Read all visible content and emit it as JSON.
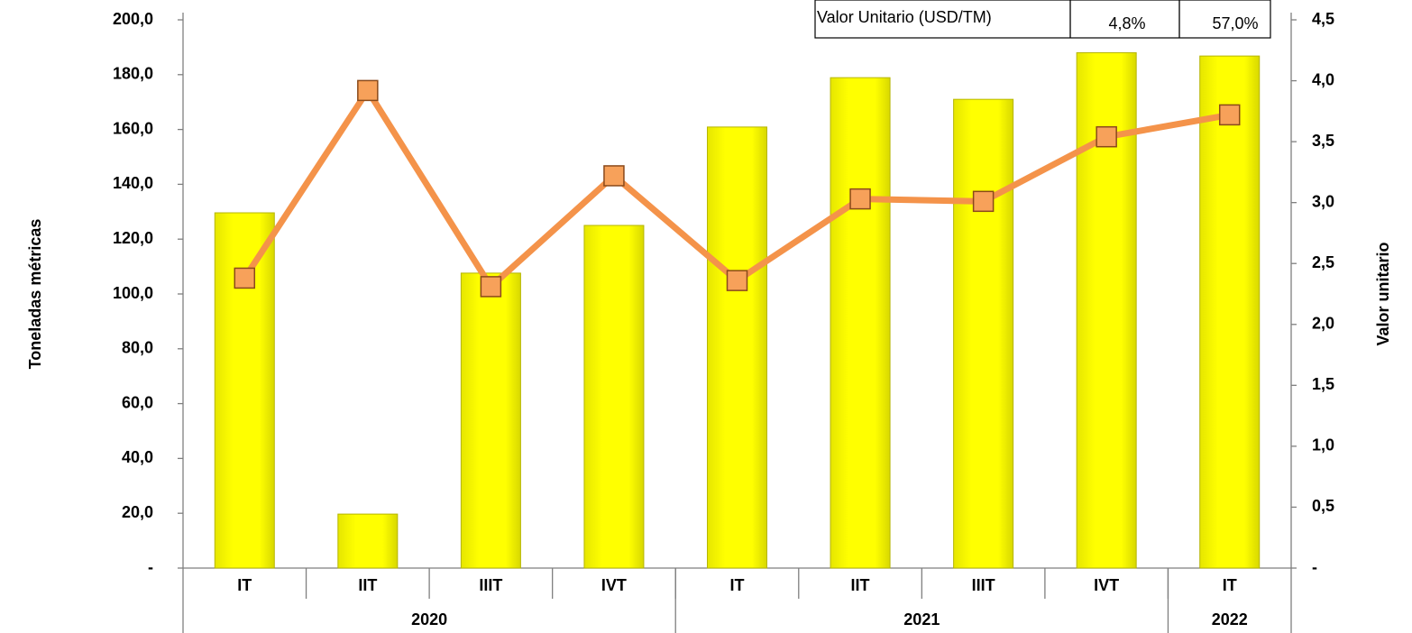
{
  "chart_data": {
    "type": "bar_line",
    "y_label": "Toneladas métricas",
    "y2_label": "Valor unitario",
    "categories": [
      "IT",
      "IIT",
      "IIIT",
      "IVT",
      "IT",
      "IIT",
      "IIIT",
      "IVT",
      "IT"
    ],
    "groups": [
      {
        "label": "2020",
        "count": 4
      },
      {
        "label": "2021",
        "count": 4
      },
      {
        "label": "2022",
        "count": 1
      }
    ],
    "series": [
      {
        "type": "bar",
        "color": "#ffff00",
        "values": [
          129.6,
          19.7,
          107.6,
          125.0,
          160.9,
          178.9,
          171.0,
          188.0,
          186.8
        ]
      },
      {
        "type": "line",
        "axis": "y2",
        "color": "#f4934a",
        "marker_color": "#f7a15a",
        "values": [
          2.38,
          3.92,
          2.31,
          3.22,
          2.36,
          3.03,
          3.01,
          3.54,
          3.72
        ]
      }
    ],
    "ylim": [
      0,
      200
    ],
    "yticks": [
      {
        "value": 0,
        "label": "-"
      },
      {
        "value": 20,
        "label": "20,0"
      },
      {
        "value": 40,
        "label": "40,0"
      },
      {
        "value": 60,
        "label": "60,0"
      },
      {
        "value": 80,
        "label": "80,0"
      },
      {
        "value": 100,
        "label": "100,0"
      },
      {
        "value": 120,
        "label": "120,0"
      },
      {
        "value": 140,
        "label": "140,0"
      },
      {
        "value": 160,
        "label": "160,0"
      },
      {
        "value": 180,
        "label": "180,0"
      },
      {
        "value": 200,
        "label": "200,0"
      }
    ],
    "y2lim": [
      0,
      4.5
    ],
    "y2ticks": [
      {
        "value": 0,
        "label": "-"
      },
      {
        "value": 0.5,
        "label": "0,5"
      },
      {
        "value": 1,
        "label": "1,0"
      },
      {
        "value": 1.5,
        "label": "1,5"
      },
      {
        "value": 2,
        "label": "2,0"
      },
      {
        "value": 2.5,
        "label": "2,5"
      },
      {
        "value": 3,
        "label": "3,0"
      },
      {
        "value": 3.5,
        "label": "3,5"
      },
      {
        "value": 4,
        "label": "4,0"
      },
      {
        "value": 4.5,
        "label": "4,5"
      }
    ],
    "table": {
      "label": "Valor Unitario (USD/TM)",
      "values": [
        "4,8%",
        "57,0%"
      ]
    }
  }
}
